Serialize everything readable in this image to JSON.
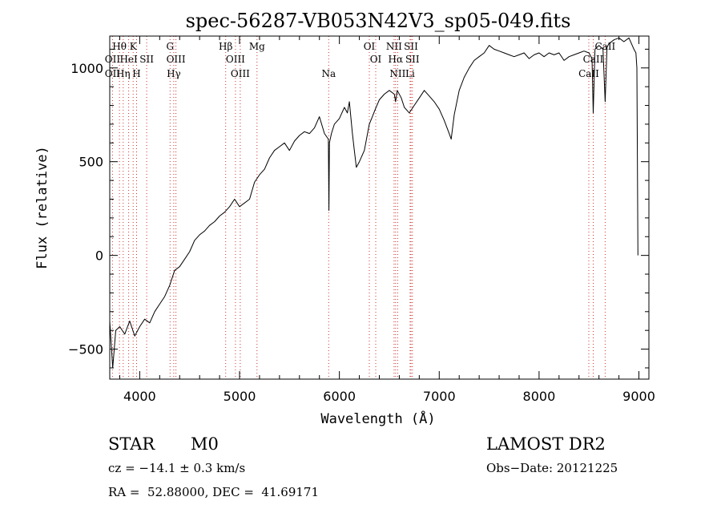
{
  "chart_data": {
    "type": "line",
    "title": "spec-56287-VB053N42V3_sp05-049.fits",
    "xlabel": "Wavelength (Å)",
    "ylabel": "Flux (relative)",
    "xlim": [
      3700,
      9100
    ],
    "ylim": [
      -660,
      1170
    ],
    "x_ticks": [
      4000,
      5000,
      6000,
      7000,
      8000,
      9000
    ],
    "y_ticks": [
      -500,
      0,
      500,
      1000
    ],
    "grid": false,
    "line_color": "#000000",
    "marker_color": "#cc3333",
    "spectrum": {
      "x": [
        3700,
        3730,
        3760,
        3800,
        3850,
        3900,
        3950,
        4000,
        4050,
        4100,
        4150,
        4200,
        4250,
        4300,
        4350,
        4400,
        4450,
        4500,
        4550,
        4600,
        4650,
        4700,
        4750,
        4800,
        4850,
        4900,
        4950,
        5000,
        5050,
        5100,
        5150,
        5200,
        5250,
        5300,
        5350,
        5400,
        5450,
        5500,
        5550,
        5600,
        5650,
        5700,
        5750,
        5800,
        5850,
        5890,
        5895,
        5900,
        5920,
        5950,
        6000,
        6050,
        6080,
        6100,
        6130,
        6150,
        6170,
        6200,
        6250,
        6300,
        6330,
        6360,
        6400,
        6450,
        6500,
        6550,
        6563,
        6580,
        6620,
        6650,
        6700,
        6750,
        6800,
        6850,
        6900,
        6950,
        7000,
        7050,
        7100,
        7120,
        7150,
        7200,
        7250,
        7300,
        7350,
        7400,
        7450,
        7500,
        7550,
        7600,
        7650,
        7700,
        7750,
        7800,
        7850,
        7900,
        7950,
        8000,
        8050,
        8100,
        8150,
        8200,
        8250,
        8300,
        8350,
        8400,
        8450,
        8500,
        8530,
        8542,
        8560,
        8600,
        8640,
        8662,
        8680,
        8700,
        8750,
        8800,
        8850,
        8900,
        8950,
        8970,
        8980,
        8990
      ],
      "y": [
        -350,
        -600,
        -400,
        -380,
        -420,
        -350,
        -430,
        -380,
        -340,
        -360,
        -300,
        -260,
        -220,
        -160,
        -80,
        -60,
        -20,
        20,
        80,
        110,
        130,
        160,
        180,
        210,
        230,
        260,
        300,
        260,
        280,
        300,
        390,
        430,
        460,
        520,
        560,
        580,
        600,
        560,
        610,
        640,
        660,
        650,
        680,
        740,
        650,
        620,
        240,
        600,
        650,
        700,
        730,
        790,
        760,
        820,
        650,
        560,
        470,
        500,
        560,
        700,
        740,
        780,
        830,
        860,
        880,
        860,
        820,
        880,
        840,
        790,
        760,
        800,
        840,
        880,
        850,
        820,
        780,
        720,
        650,
        620,
        750,
        880,
        950,
        1000,
        1040,
        1060,
        1080,
        1120,
        1100,
        1090,
        1080,
        1070,
        1060,
        1070,
        1080,
        1050,
        1070,
        1080,
        1060,
        1080,
        1070,
        1080,
        1040,
        1060,
        1070,
        1080,
        1090,
        1080,
        1050,
        760,
        1100,
        1120,
        1100,
        820,
        1110,
        1130,
        1150,
        1160,
        1140,
        1160,
        1100,
        1080,
        1000,
        0
      ]
    },
    "lines": [
      {
        "label": "Hθ",
        "x": 3797,
        "row": 1
      },
      {
        "label": "K",
        "x": 3934,
        "row": 1
      },
      {
        "label": "OII",
        "x": 3727,
        "row": 2
      },
      {
        "label": "HeI",
        "x": 3889,
        "row": 2
      },
      {
        "label": "SII",
        "x": 4070,
        "row": 2
      },
      {
        "label": "OII",
        "x": 3727,
        "row": 3
      },
      {
        "label": "Hη",
        "x": 3835,
        "row": 3
      },
      {
        "label": "H",
        "x": 3969,
        "row": 3
      },
      {
        "label": "G",
        "x": 4304,
        "row": 1
      },
      {
        "label": "OIII",
        "x": 4363,
        "row": 2
      },
      {
        "label": "Hγ",
        "x": 4341,
        "row": 3
      },
      {
        "label": "Hβ",
        "x": 4861,
        "row": 1
      },
      {
        "label": "OIII",
        "x": 4959,
        "row": 2
      },
      {
        "label": "OIII",
        "x": 5007,
        "row": 3
      },
      {
        "label": "Mg",
        "x": 5175,
        "row": 1
      },
      {
        "label": "Na",
        "x": 5893,
        "row": 3
      },
      {
        "label": "OI",
        "x": 6300,
        "row": 1
      },
      {
        "label": "OI",
        "x": 6364,
        "row": 2
      },
      {
        "label": "NII",
        "x": 6548,
        "row": 1
      },
      {
        "label": "SII",
        "x": 6717,
        "row": 1
      },
      {
        "label": "Hα",
        "x": 6563,
        "row": 2
      },
      {
        "label": "SII",
        "x": 6731,
        "row": 2
      },
      {
        "label": "NII",
        "x": 6584,
        "row": 3
      },
      {
        "label": "Li",
        "x": 6708,
        "row": 3
      },
      {
        "label": "CaII",
        "x": 8662,
        "row": 1
      },
      {
        "label": "CaII",
        "x": 8542,
        "row": 2
      },
      {
        "label": "CaII",
        "x": 8498,
        "row": 3
      }
    ]
  },
  "info": {
    "class_label": "STAR",
    "subclass": "M0",
    "survey": "LAMOST DR2",
    "cz": "cz = −14.1 ± 0.3 km/s",
    "obs_date": "Obs−Date: 20121225",
    "radec": "RA =  52.88000, DEC =  41.69171"
  }
}
